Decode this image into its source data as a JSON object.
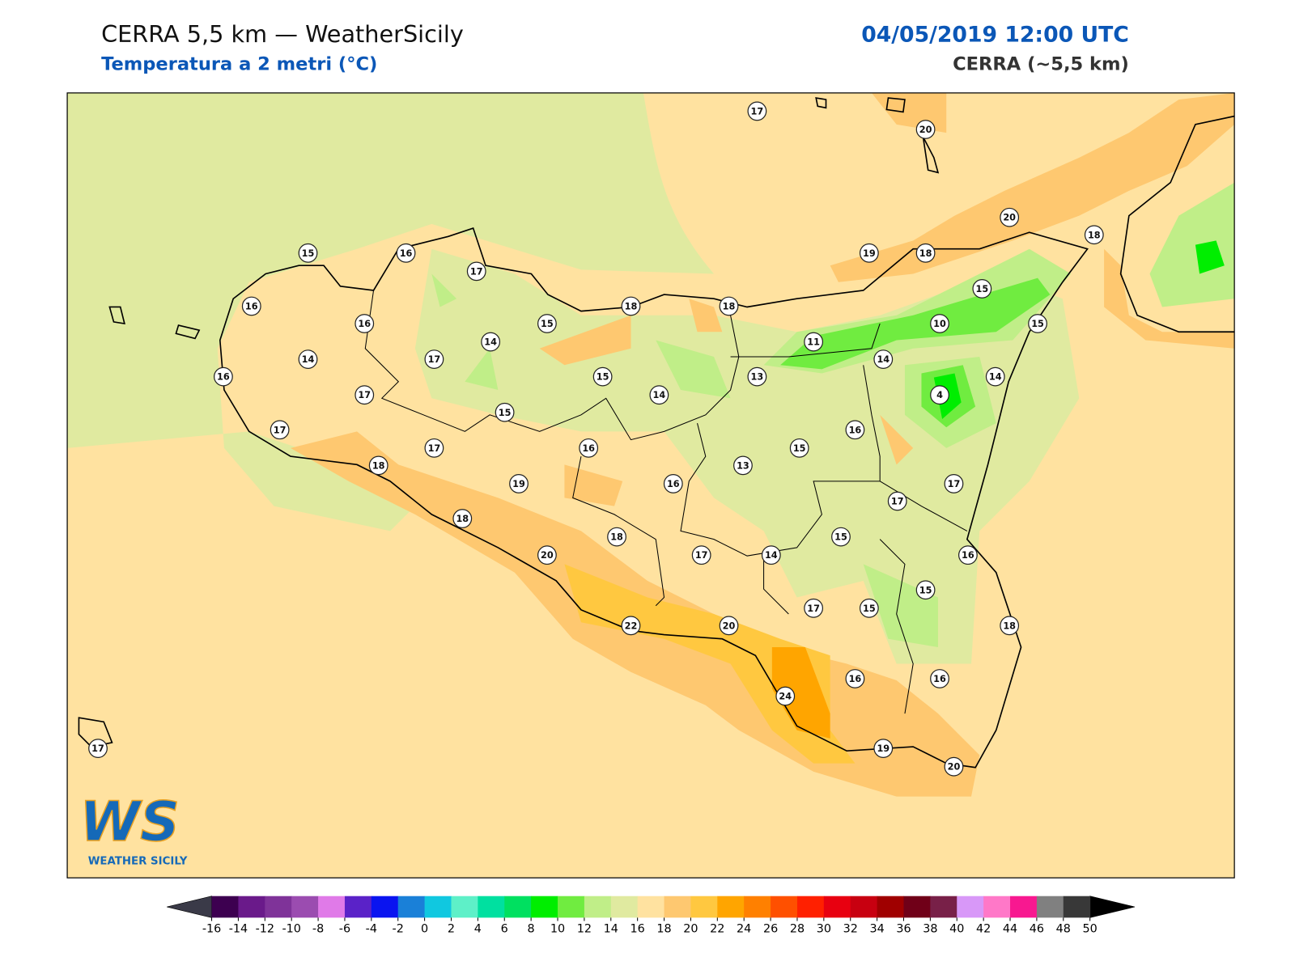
{
  "header": {
    "title": "CERRA 5,5 km — WeatherSicily",
    "subtitle": "Temperatura a 2 metri (°C)",
    "datetime": "04/05/2019 12:00 UTC",
    "model": "CERRA (~5,5 km)"
  },
  "map": {
    "stations": [
      17,
      20,
      20,
      18,
      15,
      16,
      17,
      19,
      18,
      15,
      16,
      18,
      18,
      16,
      15,
      10,
      15,
      14,
      11,
      14,
      17,
      14,
      16,
      15,
      13,
      14,
      14,
      4,
      17,
      15,
      17,
      16,
      17,
      16,
      15,
      18,
      13,
      19,
      16,
      17,
      17,
      18,
      15,
      18,
      20,
      17,
      14,
      16,
      15,
      17,
      15,
      22,
      20,
      18,
      16,
      16,
      24,
      19,
      20,
      17
    ]
  },
  "logo": {
    "mark": "WS",
    "text": "WEATHER SICILY"
  },
  "colorbar": {
    "ticks": [
      -16,
      -14,
      -12,
      -10,
      -8,
      -6,
      -4,
      -2,
      0,
      2,
      4,
      6,
      8,
      10,
      12,
      14,
      16,
      18,
      20,
      22,
      24,
      26,
      28,
      30,
      32,
      34,
      36,
      38,
      40,
      42,
      44,
      46,
      48,
      50
    ],
    "colors": [
      "#3d0050",
      "#6a1a8a",
      "#7f3399",
      "#9b4cb0",
      "#e07ae8",
      "#5a22c8",
      "#0a14f0",
      "#1a80d8",
      "#10c8e0",
      "#5ef0c8",
      "#00e0a0",
      "#00e060",
      "#00ee00",
      "#70ec40",
      "#c0ee88",
      "#e0eaa0",
      "#ffe2a0",
      "#fec870",
      "#ffc840",
      "#ffa500",
      "#ff8000",
      "#ff5000",
      "#ff2000",
      "#e80010",
      "#c80010",
      "#a00000",
      "#700018",
      "#782048",
      "#d898f8",
      "#ff78c8",
      "#f81890",
      "#808080",
      "#383838"
    ],
    "under_color": "#3a3a48",
    "over_color": "#000000"
  }
}
